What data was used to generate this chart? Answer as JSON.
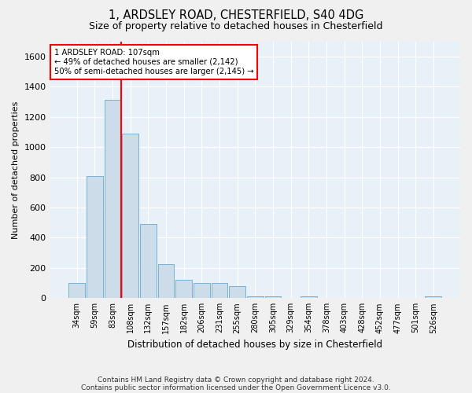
{
  "title1": "1, ARDSLEY ROAD, CHESTERFIELD, S40 4DG",
  "title2": "Size of property relative to detached houses in Chesterfield",
  "xlabel": "Distribution of detached houses by size in Chesterfield",
  "ylabel": "Number of detached properties",
  "footnote1": "Contains HM Land Registry data © Crown copyright and database right 2024.",
  "footnote2": "Contains public sector information licensed under the Open Government Licence v3.0.",
  "categories": [
    "34sqm",
    "59sqm",
    "83sqm",
    "108sqm",
    "132sqm",
    "157sqm",
    "182sqm",
    "206sqm",
    "231sqm",
    "255sqm",
    "280sqm",
    "305sqm",
    "329sqm",
    "354sqm",
    "378sqm",
    "403sqm",
    "428sqm",
    "452sqm",
    "477sqm",
    "501sqm",
    "526sqm"
  ],
  "values": [
    100,
    810,
    1310,
    1090,
    490,
    225,
    120,
    100,
    100,
    80,
    10,
    10,
    0,
    10,
    0,
    0,
    0,
    0,
    0,
    0,
    10
  ],
  "bar_color": "#ccdce8",
  "bar_edge_color": "#7aafd4",
  "ylim": [
    0,
    1700
  ],
  "yticks": [
    0,
    200,
    400,
    600,
    800,
    1000,
    1200,
    1400,
    1600
  ],
  "red_line_x": 3.0,
  "annotation_title": "1 ARDSLEY ROAD: 107sqm",
  "annotation_line1": "← 49% of detached houses are smaller (2,142)",
  "annotation_line2": "50% of semi-detached houses are larger (2,145) →",
  "bg_color": "#e8f0f8",
  "fig_bg_color": "#f0f0f0"
}
